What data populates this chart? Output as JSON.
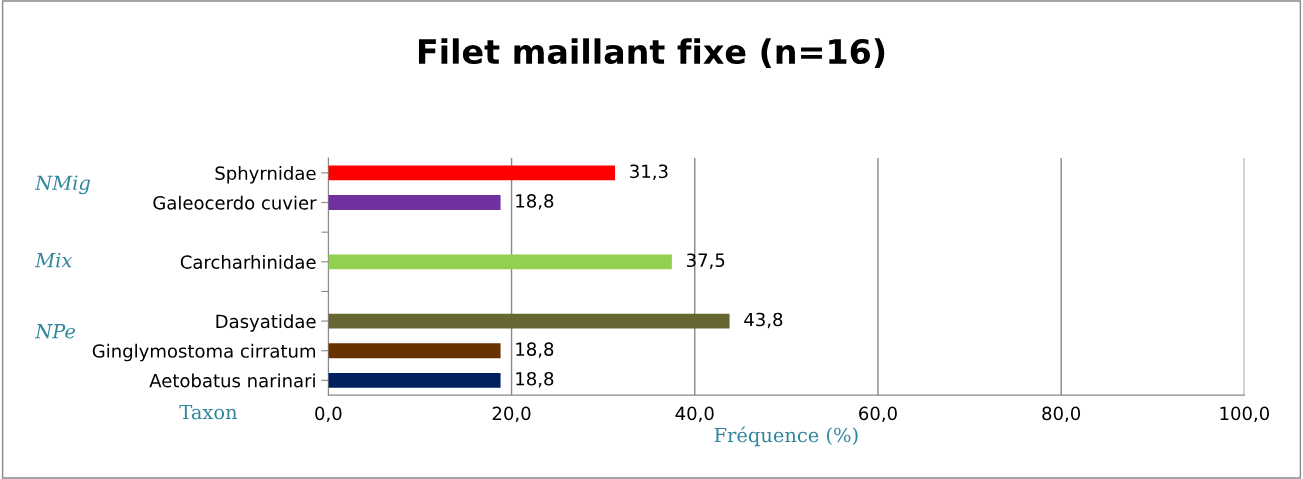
{
  "chart_data": {
    "type": "bar",
    "orientation": "horizontal",
    "title": "Filet maillant fixe (n=16)",
    "xlabel": "Fréquence (%)",
    "ylabel": "Taxon",
    "categories": [
      "Sphyrnidae",
      "Galeocerdo cuvier",
      null,
      "Carcharhinidae",
      null,
      "Dasyatidae",
      "Ginglymostoma cirratum",
      "Aetobatus narinari"
    ],
    "values": [
      31.3,
      18.8,
      null,
      37.5,
      null,
      43.8,
      18.8,
      18.8
    ],
    "colors": [
      "#ff0000",
      "#7030a0",
      "#ffffff",
      "#92d050",
      "#ffffff",
      "#666633",
      "#663300",
      "#002060"
    ],
    "value_labels": [
      "31,3",
      "18,8",
      null,
      "37,5",
      null,
      "43,8",
      "18,8",
      "18,8"
    ],
    "xlim": [
      0,
      100
    ],
    "xticks": [
      {
        "value": 0,
        "label": "0,0"
      },
      {
        "value": 20,
        "label": "20,0"
      },
      {
        "value": 40,
        "label": "40,0"
      },
      {
        "value": 60,
        "label": "60,0"
      },
      {
        "value": 80,
        "label": "80,0"
      },
      {
        "value": 100,
        "label": "100,0"
      }
    ],
    "grid": "x",
    "annotations": [
      "NMig",
      "Mix",
      "NPe"
    ]
  }
}
